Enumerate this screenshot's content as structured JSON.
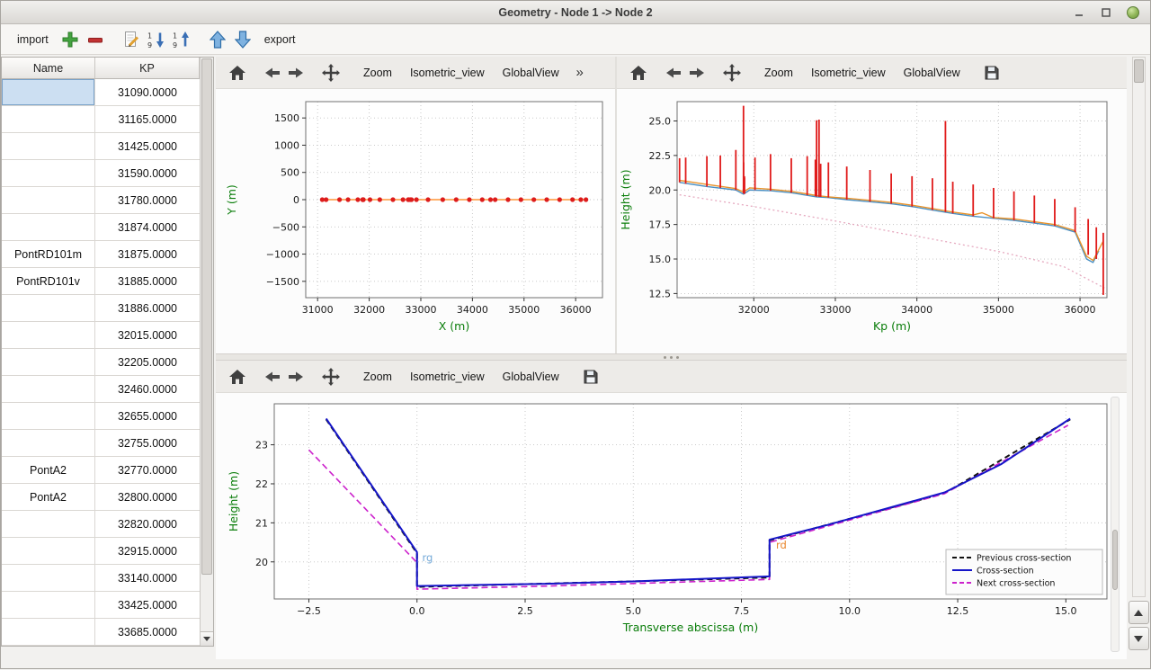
{
  "window": {
    "title": "Geometry - Node 1 -> Node 2"
  },
  "main_toolbar": {
    "import_label": "import",
    "export_label": "export",
    "sort_digit_first": "1",
    "sort_digit_last": "9"
  },
  "plot_toolbar": {
    "zoom": "Zoom",
    "isometric": "Isometric_view",
    "global": "GlobalView",
    "overflow": "»"
  },
  "table": {
    "columns": [
      "Name",
      "KP"
    ],
    "rows": [
      {
        "name": "",
        "kp": "31090.0000",
        "selected": true
      },
      {
        "name": "",
        "kp": "31165.0000"
      },
      {
        "name": "",
        "kp": "31425.0000"
      },
      {
        "name": "",
        "kp": "31590.0000"
      },
      {
        "name": "",
        "kp": "31780.0000"
      },
      {
        "name": "",
        "kp": "31874.0000"
      },
      {
        "name": "PontRD101m",
        "kp": "31875.0000"
      },
      {
        "name": "PontRD101v",
        "kp": "31885.0000"
      },
      {
        "name": "",
        "kp": "31886.0000"
      },
      {
        "name": "",
        "kp": "32015.0000"
      },
      {
        "name": "",
        "kp": "32205.0000"
      },
      {
        "name": "",
        "kp": "32460.0000"
      },
      {
        "name": "",
        "kp": "32655.0000"
      },
      {
        "name": "",
        "kp": "32755.0000"
      },
      {
        "name": "PontA2",
        "kp": "32770.0000"
      },
      {
        "name": "PontA2",
        "kp": "32800.0000"
      },
      {
        "name": "",
        "kp": "32820.0000"
      },
      {
        "name": "",
        "kp": "32915.0000"
      },
      {
        "name": "",
        "kp": "33140.0000"
      },
      {
        "name": "",
        "kp": "33425.0000"
      },
      {
        "name": "",
        "kp": "33685.0000"
      }
    ]
  },
  "chart_data": [
    {
      "id": "plan-view",
      "type": "scatter",
      "xlabel": "X (m)",
      "ylabel": "Y (m)",
      "xlim": [
        30770,
        36520
      ],
      "ylim": [
        -1800,
        1800
      ],
      "xticks": [
        31000,
        32000,
        33000,
        34000,
        35000,
        36000
      ],
      "xtick_labels": [
        "31000",
        "32000",
        "33000",
        "34000",
        "35000",
        "36000"
      ],
      "yticks": [
        -1500,
        -1000,
        -500,
        0,
        500,
        1000,
        1500
      ],
      "ytick_labels": [
        "−1500",
        "−1000",
        "−500",
        "0",
        "500",
        "1000",
        "1500"
      ],
      "series": [
        {
          "name": "river-axis-line",
          "type": "line",
          "color": "#ff7f0e",
          "width": 1.2,
          "x": [
            31090,
            36200
          ],
          "y": [
            0,
            0
          ]
        },
        {
          "name": "cross-section-points",
          "type": "scatter",
          "color": "#dd1c1c",
          "size": 2.6,
          "x": [
            31090,
            31165,
            31425,
            31590,
            31780,
            31874,
            31875,
            31885,
            31886,
            32015,
            32205,
            32460,
            32655,
            32755,
            32770,
            32800,
            32820,
            32915,
            33140,
            33425,
            33685,
            33940,
            34190,
            34350,
            34440,
            34690,
            34940,
            35190,
            35440,
            35690,
            35940,
            36100,
            36200
          ],
          "y_const": 0
        }
      ]
    },
    {
      "id": "longitudinal-profile",
      "type": "line",
      "xlabel": "Kp (m)",
      "ylabel": "Height (m)",
      "xlim": [
        31060,
        36330
      ],
      "ylim": [
        12.2,
        26.4
      ],
      "xticks": [
        32000,
        33000,
        34000,
        35000,
        36000
      ],
      "xtick_labels": [
        "32000",
        "33000",
        "34000",
        "35000",
        "36000"
      ],
      "yticks": [
        12.5,
        15.0,
        17.5,
        20.0,
        22.5,
        25.0
      ],
      "ytick_labels": [
        "12.5",
        "15.0",
        "17.5",
        "20.0",
        "22.5",
        "25.0"
      ],
      "series": [
        {
          "name": "reference-dotted-line",
          "type": "line",
          "color": "#e6a9bf",
          "width": 1.3,
          "dash": "2 3",
          "x": [
            31090,
            32000,
            33000,
            34000,
            35000,
            35800,
            36300
          ],
          "y": [
            19.65,
            18.8,
            17.75,
            16.65,
            15.55,
            14.45,
            12.9
          ]
        },
        {
          "name": "left-bank-line",
          "type": "line",
          "color": "#4a90c4",
          "width": 1.4,
          "x": [
            31090,
            31425,
            31780,
            31874,
            31950,
            32205,
            32460,
            32770,
            32915,
            33140,
            33425,
            33685,
            33940,
            34190,
            34440,
            34690,
            34940,
            35190,
            35440,
            35690,
            35940,
            36080,
            36160,
            36230
          ],
          "y": [
            20.55,
            20.25,
            20.0,
            19.7,
            20.0,
            19.95,
            19.8,
            19.5,
            19.45,
            19.3,
            19.15,
            19.0,
            18.8,
            18.55,
            18.3,
            18.1,
            17.95,
            17.8,
            17.6,
            17.4,
            16.95,
            15.0,
            14.75,
            15.6
          ]
        },
        {
          "name": "right-bank-line",
          "type": "line",
          "color": "#e8922a",
          "width": 1.4,
          "x": [
            31090,
            31425,
            31780,
            31874,
            31950,
            32205,
            32460,
            32770,
            32915,
            33140,
            33425,
            33685,
            33940,
            34190,
            34440,
            34690,
            34800,
            34940,
            35190,
            35440,
            35690,
            35940,
            36080,
            36160,
            36285
          ],
          "y": [
            20.7,
            20.4,
            20.1,
            19.85,
            20.15,
            20.05,
            19.9,
            19.6,
            19.5,
            19.4,
            19.25,
            19.1,
            18.9,
            18.65,
            18.4,
            18.2,
            18.35,
            18.0,
            17.9,
            17.7,
            17.5,
            17.05,
            15.2,
            14.9,
            16.3
          ]
        }
      ],
      "vlines": {
        "name": "cross-section-markers",
        "color": "#e01b1b",
        "width": 1.8,
        "items": [
          [
            31090,
            20.55,
            22.3
          ],
          [
            31165,
            20.45,
            22.35
          ],
          [
            31425,
            20.25,
            22.45
          ],
          [
            31590,
            20.15,
            22.5
          ],
          [
            31780,
            20.0,
            22.9
          ],
          [
            31874,
            19.75,
            26.1
          ],
          [
            31875,
            19.75,
            22.0
          ],
          [
            31885,
            19.72,
            21.0
          ],
          [
            31886,
            19.72,
            20.9
          ],
          [
            32015,
            20.0,
            22.35
          ],
          [
            32205,
            19.95,
            22.6
          ],
          [
            32460,
            19.8,
            22.3
          ],
          [
            32655,
            19.62,
            22.45
          ],
          [
            32755,
            19.55,
            22.2
          ],
          [
            32770,
            19.52,
            25.05
          ],
          [
            32800,
            19.5,
            25.1
          ],
          [
            32820,
            19.5,
            21.9
          ],
          [
            32915,
            19.45,
            22.0
          ],
          [
            33140,
            19.3,
            21.7
          ],
          [
            33425,
            19.15,
            21.45
          ],
          [
            33685,
            19.0,
            21.2
          ],
          [
            33940,
            18.8,
            21.0
          ],
          [
            34190,
            18.55,
            20.85
          ],
          [
            34350,
            18.4,
            25.0
          ],
          [
            34440,
            18.3,
            20.6
          ],
          [
            34690,
            18.1,
            20.4
          ],
          [
            34940,
            17.95,
            20.15
          ],
          [
            35190,
            17.8,
            19.9
          ],
          [
            35440,
            17.6,
            19.6
          ],
          [
            35690,
            17.4,
            19.35
          ],
          [
            35940,
            16.95,
            18.75
          ],
          [
            36100,
            15.3,
            17.9
          ],
          [
            36200,
            15.0,
            17.3
          ],
          [
            36285,
            12.4,
            16.9
          ]
        ]
      }
    },
    {
      "id": "cross-section",
      "type": "line",
      "xlabel": "Transverse abscissa (m)",
      "ylabel": "Height (m)",
      "xlim": [
        -3.3,
        15.95
      ],
      "ylim": [
        19.05,
        24.05
      ],
      "xticks": [
        -2.5,
        0,
        2.5,
        5,
        7.5,
        10,
        12.5,
        15
      ],
      "xtick_labels": [
        "−2.5",
        "0.0",
        "2.5",
        "5.0",
        "7.5",
        "10.0",
        "12.5",
        "15.0"
      ],
      "yticks": [
        20,
        21,
        22,
        23
      ],
      "ytick_labels": [
        "20",
        "21",
        "22",
        "23"
      ],
      "series": [
        {
          "name": "previous-cross-section",
          "type": "line",
          "color": "#111111",
          "width": 2,
          "dash": "6 4",
          "x": [
            -2.1,
            0.0,
            0.0,
            5.0,
            8.15,
            8.15,
            12.2,
            15.1
          ],
          "y": [
            23.65,
            20.22,
            19.36,
            19.5,
            19.6,
            20.55,
            21.76,
            23.65
          ]
        },
        {
          "name": "next-cross-section",
          "type": "line",
          "color": "#cc22cc",
          "width": 1.6,
          "dash": "7 4",
          "x": [
            -2.5,
            0.0,
            0.0,
            3.0,
            8.15,
            8.15,
            12.2,
            15.05
          ],
          "y": [
            22.87,
            19.98,
            19.3,
            19.38,
            19.55,
            20.5,
            21.75,
            23.5
          ]
        },
        {
          "name": "cross-section",
          "type": "line",
          "color": "#1515c8",
          "width": 2,
          "x": [
            -2.1,
            0.0,
            0.0,
            1.0,
            3.0,
            5.0,
            8.15,
            8.15,
            9.5,
            12.2,
            13.5,
            15.1
          ],
          "y": [
            23.67,
            20.25,
            19.38,
            19.4,
            19.44,
            19.5,
            19.63,
            20.57,
            20.95,
            21.78,
            22.5,
            23.67
          ]
        }
      ],
      "annotations": [
        {
          "text": "rg",
          "x": 0.12,
          "y": 20.02,
          "color": "#74a9d8"
        },
        {
          "text": "rd",
          "x": 8.3,
          "y": 20.34,
          "color": "#e8842a"
        }
      ],
      "legend": {
        "position": "lower right",
        "entries": [
          {
            "label": "Previous cross-section",
            "color": "#111111",
            "dash": true
          },
          {
            "label": "Cross-section",
            "color": "#1515c8",
            "dash": false
          },
          {
            "label": "Next cross-section",
            "color": "#cc22cc",
            "dash": true
          }
        ]
      }
    }
  ]
}
